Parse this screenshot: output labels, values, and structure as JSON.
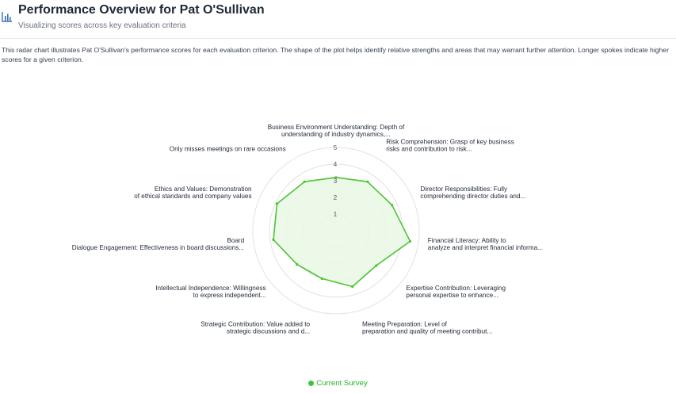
{
  "header": {
    "title": "Performance Overview for Pat O'Sullivan",
    "subtitle": "Visualizing scores across key evaluation criteria"
  },
  "description": "This radar chart illustrates Pat O'Sullivan's performance scores for each evaluation criterion. The shape of the plot helps identify relative strengths and areas that may warrant further attention. Longer spokes indicate higher scores for a given criterion.",
  "colors": {
    "series_line": "#4cc433",
    "series_fill": "#e9f8e4",
    "grid": "#e2e2e2",
    "legend_text": "#22b322",
    "icon": "#3b6fb5"
  },
  "header_icon": "bar-chart-icon",
  "chart_data": {
    "type": "radar",
    "range": [
      0,
      5
    ],
    "ticks": [
      "1",
      "2",
      "3",
      "4",
      "5"
    ],
    "axes": [
      [
        "Business Environment Understanding: Depth of",
        "understanding of industry dynamics,..."
      ],
      [
        "Risk Comprehension: Grasp of key business",
        "risks and contribution to risk..."
      ],
      [
        "Director Responsibilities: Fully",
        "comprehending director duties and..."
      ],
      [
        "Financial Literacy: Ability to",
        "analyze and interpret financial informa..."
      ],
      [
        "Expertise Contribution: Leveraging",
        "personal expertise to enhance..."
      ],
      [
        "Meeting Preparation: Level of",
        "preparation and quality of meeting contribut..."
      ],
      [
        "Strategic Contribution: Value added to",
        "strategic discussions and d..."
      ],
      [
        "Intellectual Independence: Willingness",
        "to express independent..."
      ],
      [
        "Board",
        "Dialogue Engagement: Effectiveness in board discussions..."
      ],
      [
        "Ethics and Values: Demonstration",
        "of ethical standards and company values"
      ],
      [
        "Only misses meetings on rare occasions"
      ]
    ],
    "series": [
      {
        "name": "Current Survey",
        "values": [
          3.2,
          3.5,
          3.7,
          4.5,
          3.2,
          3.5,
          3.0,
          3.1,
          3.8,
          3.9,
          3.5
        ]
      }
    ],
    "legend": "bottom"
  }
}
